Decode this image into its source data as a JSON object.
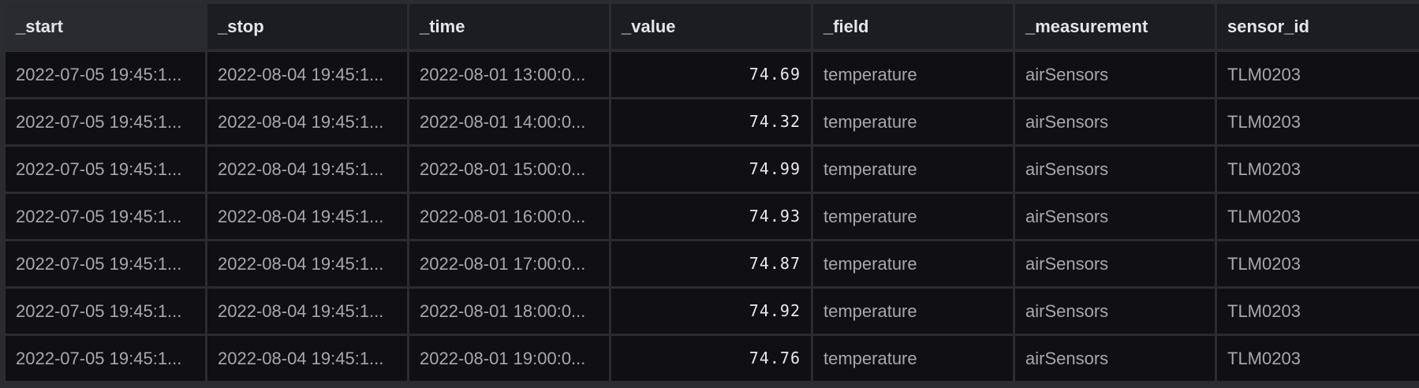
{
  "table": {
    "columns": [
      "_start",
      "_stop",
      "_time",
      "_value",
      "_field",
      "_measurement",
      "sensor_id"
    ],
    "rows": [
      {
        "start": "2022-07-05 19:45:1...",
        "stop": "2022-08-04 19:45:1...",
        "time": "2022-08-01 13:00:0...",
        "value": "74.69",
        "field": "temperature",
        "measurement": "airSensors",
        "sensor_id": "TLM0203"
      },
      {
        "start": "2022-07-05 19:45:1...",
        "stop": "2022-08-04 19:45:1...",
        "time": "2022-08-01 14:00:0...",
        "value": "74.32",
        "field": "temperature",
        "measurement": "airSensors",
        "sensor_id": "TLM0203"
      },
      {
        "start": "2022-07-05 19:45:1...",
        "stop": "2022-08-04 19:45:1...",
        "time": "2022-08-01 15:00:0...",
        "value": "74.99",
        "field": "temperature",
        "measurement": "airSensors",
        "sensor_id": "TLM0203"
      },
      {
        "start": "2022-07-05 19:45:1...",
        "stop": "2022-08-04 19:45:1...",
        "time": "2022-08-01 16:00:0...",
        "value": "74.93",
        "field": "temperature",
        "measurement": "airSensors",
        "sensor_id": "TLM0203"
      },
      {
        "start": "2022-07-05 19:45:1...",
        "stop": "2022-08-04 19:45:1...",
        "time": "2022-08-01 17:00:0...",
        "value": "74.87",
        "field": "temperature",
        "measurement": "airSensors",
        "sensor_id": "TLM0203"
      },
      {
        "start": "2022-07-05 19:45:1...",
        "stop": "2022-08-04 19:45:1...",
        "time": "2022-08-01 18:00:0...",
        "value": "74.92",
        "field": "temperature",
        "measurement": "airSensors",
        "sensor_id": "TLM0203"
      },
      {
        "start": "2022-07-05 19:45:1...",
        "stop": "2022-08-04 19:45:1...",
        "time": "2022-08-01 19:00:0...",
        "value": "74.76",
        "field": "temperature",
        "measurement": "airSensors",
        "sensor_id": "TLM0203"
      }
    ]
  },
  "colors": {
    "cell_bg": "#0f0f14",
    "header_bg": "#1c1d22",
    "grid": "#2b2c31",
    "text": "#a7a8ae",
    "header_text": "#e4e5ea"
  }
}
